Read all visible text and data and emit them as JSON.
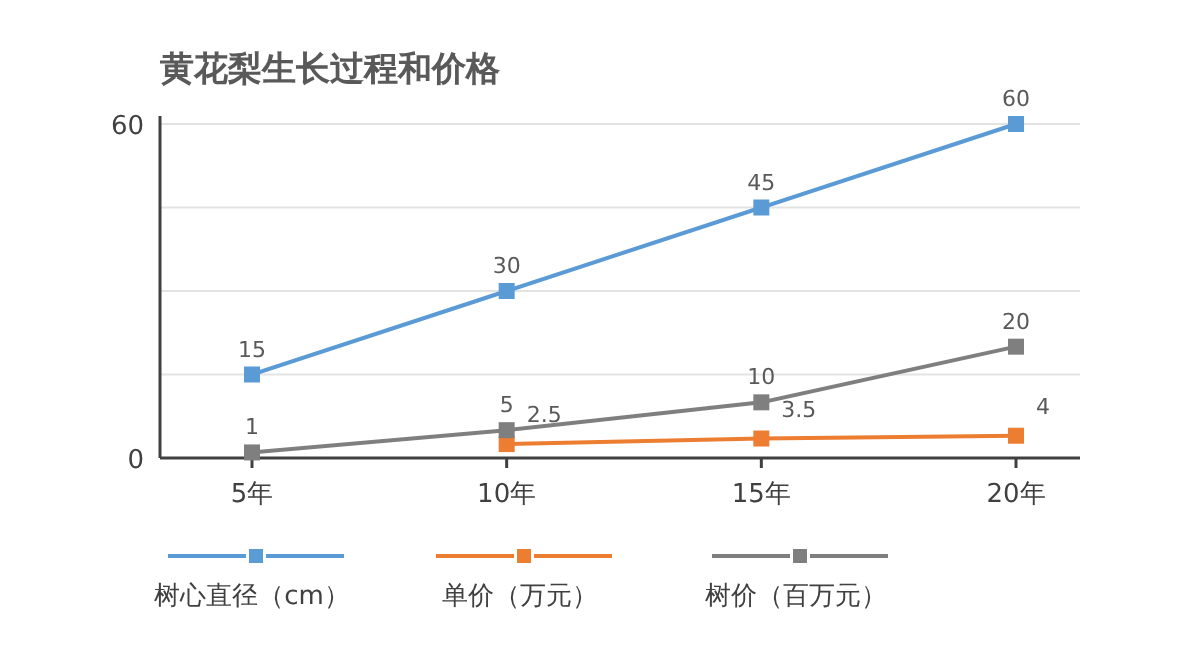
{
  "chart_data": {
    "type": "line",
    "title": "黄花梨生长过程和价格",
    "categories": [
      "5年",
      "10年",
      "15年",
      "20年"
    ],
    "series": [
      {
        "name": "树心直径（cm）",
        "color": "#5b9bd5",
        "values": [
          15,
          30,
          45,
          60
        ],
        "value_labels": [
          "15",
          "30",
          "45",
          "60"
        ]
      },
      {
        "name": "单价（万元）",
        "color": "#ed7d31",
        "values": [
          null,
          2.5,
          3.5,
          4
        ],
        "value_labels": [
          null,
          "2.5",
          "3.5",
          "4"
        ]
      },
      {
        "name": "树价（百万元）",
        "color": "#7f7f7f",
        "values": [
          1,
          5,
          10,
          20
        ],
        "value_labels": [
          "1",
          "5",
          "10",
          "20"
        ]
      }
    ],
    "ylim": [
      0,
      60
    ],
    "yticks": [
      0,
      {
        "value": 15,
        "label": null
      },
      {
        "value": 30,
        "label": null
      },
      {
        "value": 45,
        "label": null
      },
      60
    ],
    "grid": "y",
    "legend": "bottom",
    "marker": "square",
    "line_style": "solid"
  }
}
